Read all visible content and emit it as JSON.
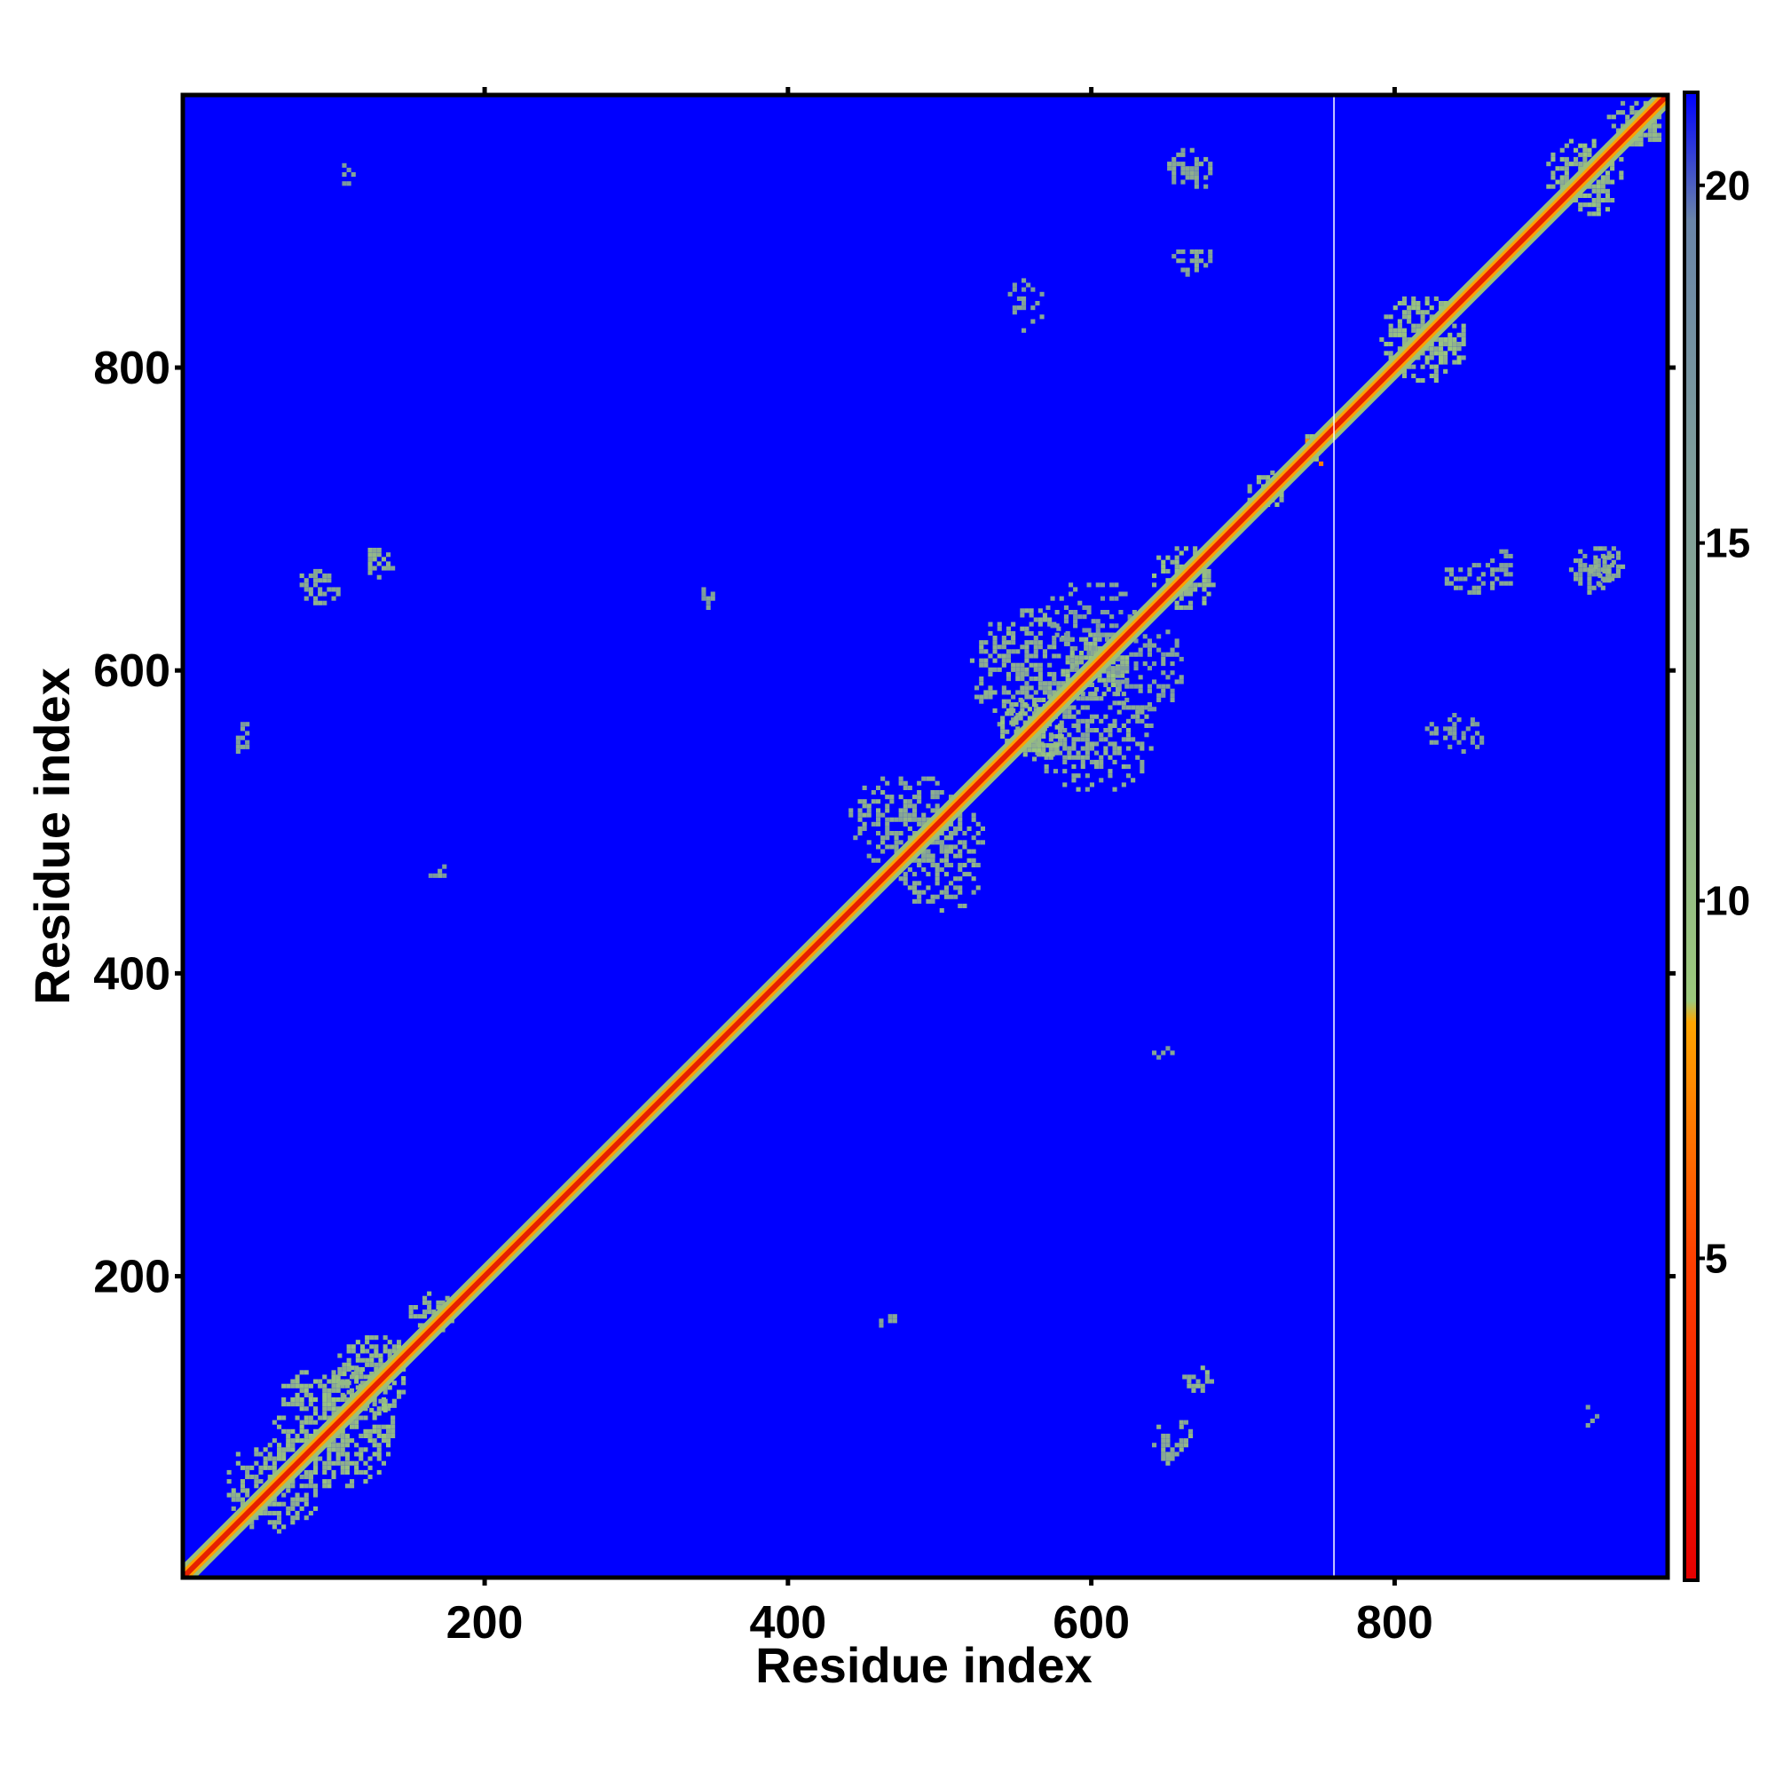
{
  "chart_data": {
    "type": "heatmap",
    "title": "",
    "xlabel": "Residue index",
    "ylabel": "Residue index",
    "xlim": [
      1,
      980
    ],
    "ylim": [
      1,
      980
    ],
    "xticks": [
      200,
      400,
      600,
      800
    ],
    "yticks": [
      200,
      400,
      600,
      800
    ],
    "colorbar": {
      "range": [
        0.5,
        21.3
      ],
      "ticks": [
        5,
        10,
        15,
        20
      ],
      "stops": [
        {
          "value": 0.5,
          "color": "#e60000"
        },
        {
          "value": 5.0,
          "color": "#ff4000"
        },
        {
          "value": 8.3,
          "color": "#ffa500"
        },
        {
          "value": 8.6,
          "color": "#9cc97c"
        },
        {
          "value": 12.0,
          "color": "#8fb08e"
        },
        {
          "value": 16.0,
          "color": "#7f9e9b"
        },
        {
          "value": 19.5,
          "color": "#6a85a8"
        },
        {
          "value": 21.3,
          "color": "#0000ff"
        }
      ]
    },
    "background_value": 21.3,
    "colors": {
      "background": "#0000ff",
      "diagonal": "#e62000",
      "near": "#ffa000",
      "contact": "#9bbf7a",
      "contact_far": "#7f9aa0",
      "separator": "#ffffff"
    },
    "separator_at": 760,
    "grid": false,
    "diagonal_band_width": 4,
    "contact_regions": [
      {
        "x": 60,
        "y": 60,
        "w": 80,
        "h": 80,
        "value": 11,
        "density": 0.55
      },
      {
        "x": 100,
        "y": 110,
        "w": 50,
        "h": 50,
        "value": 11,
        "density": 0.5
      },
      {
        "x": 30,
        "y": 30,
        "w": 60,
        "h": 60,
        "value": 12,
        "density": 0.5
      },
      {
        "x": 150,
        "y": 160,
        "w": 30,
        "h": 30,
        "value": 12,
        "density": 0.5
      },
      {
        "x": 75,
        "y": 640,
        "w": 30,
        "h": 25,
        "value": 13,
        "density": 0.5
      },
      {
        "x": 120,
        "y": 660,
        "w": 20,
        "h": 20,
        "value": 12,
        "density": 0.5
      },
      {
        "x": 640,
        "y": 75,
        "w": 25,
        "h": 30,
        "value": 13,
        "density": 0.5
      },
      {
        "x": 660,
        "y": 120,
        "w": 20,
        "h": 20,
        "value": 12,
        "density": 0.5
      },
      {
        "x": 440,
        "y": 470,
        "w": 70,
        "h": 60,
        "value": 13,
        "density": 0.4
      },
      {
        "x": 470,
        "y": 440,
        "w": 60,
        "h": 70,
        "value": 13,
        "density": 0.4
      },
      {
        "x": 520,
        "y": 560,
        "w": 70,
        "h": 80,
        "value": 13,
        "density": 0.4
      },
      {
        "x": 560,
        "y": 520,
        "w": 80,
        "h": 70,
        "value": 13,
        "density": 0.4
      },
      {
        "x": 580,
        "y": 580,
        "w": 45,
        "h": 45,
        "value": 11,
        "density": 0.55
      },
      {
        "x": 640,
        "y": 640,
        "w": 40,
        "h": 40,
        "value": 11,
        "density": 0.55
      },
      {
        "x": 540,
        "y": 540,
        "w": 40,
        "h": 40,
        "value": 11,
        "density": 0.55
      },
      {
        "x": 790,
        "y": 790,
        "w": 55,
        "h": 55,
        "value": 11,
        "density": 0.6
      },
      {
        "x": 900,
        "y": 900,
        "w": 50,
        "h": 50,
        "value": 11,
        "density": 0.55
      },
      {
        "x": 940,
        "y": 940,
        "w": 35,
        "h": 35,
        "value": 12,
        "density": 0.5
      },
      {
        "x": 650,
        "y": 915,
        "w": 30,
        "h": 30,
        "value": 14,
        "density": 0.45
      },
      {
        "x": 650,
        "y": 860,
        "w": 30,
        "h": 20,
        "value": 14,
        "density": 0.45
      },
      {
        "x": 915,
        "y": 650,
        "w": 30,
        "h": 30,
        "value": 14,
        "density": 0.45
      },
      {
        "x": 860,
        "y": 650,
        "w": 20,
        "h": 30,
        "value": 14,
        "density": 0.45
      },
      {
        "x": 830,
        "y": 650,
        "w": 40,
        "h": 20,
        "value": 14,
        "density": 0.4
      },
      {
        "x": 925,
        "y": 655,
        "w": 25,
        "h": 25,
        "value": 13,
        "density": 0.45
      },
      {
        "x": 820,
        "y": 545,
        "w": 40,
        "h": 25,
        "value": 15,
        "density": 0.35
      },
      {
        "x": 545,
        "y": 820,
        "w": 25,
        "h": 40,
        "value": 15,
        "density": 0.35
      },
      {
        "x": 100,
        "y": 920,
        "w": 15,
        "h": 15,
        "value": 15,
        "density": 0.4
      },
      {
        "x": 920,
        "y": 100,
        "w": 15,
        "h": 15,
        "value": 15,
        "density": 0.4
      },
      {
        "x": 610,
        "y": 570,
        "w": 50,
        "h": 60,
        "value": 15,
        "density": 0.3
      },
      {
        "x": 570,
        "y": 610,
        "w": 60,
        "h": 50,
        "value": 15,
        "density": 0.3
      },
      {
        "x": 700,
        "y": 705,
        "w": 25,
        "h": 25,
        "value": 11,
        "density": 0.5
      },
      {
        "x": 738,
        "y": 735,
        "w": 20,
        "h": 20,
        "value": 9,
        "density": 0.5
      },
      {
        "x": 30,
        "y": 545,
        "w": 15,
        "h": 20,
        "value": 15,
        "density": 0.4
      },
      {
        "x": 460,
        "y": 160,
        "w": 10,
        "h": 15,
        "value": 15,
        "density": 0.4
      },
      {
        "x": 160,
        "y": 460,
        "w": 15,
        "h": 10,
        "value": 15,
        "density": 0.4
      },
      {
        "x": 340,
        "y": 640,
        "w": 10,
        "h": 15,
        "value": 15,
        "density": 0.4
      },
      {
        "x": 640,
        "y": 340,
        "w": 15,
        "h": 10,
        "value": 15,
        "density": 0.4
      }
    ]
  }
}
